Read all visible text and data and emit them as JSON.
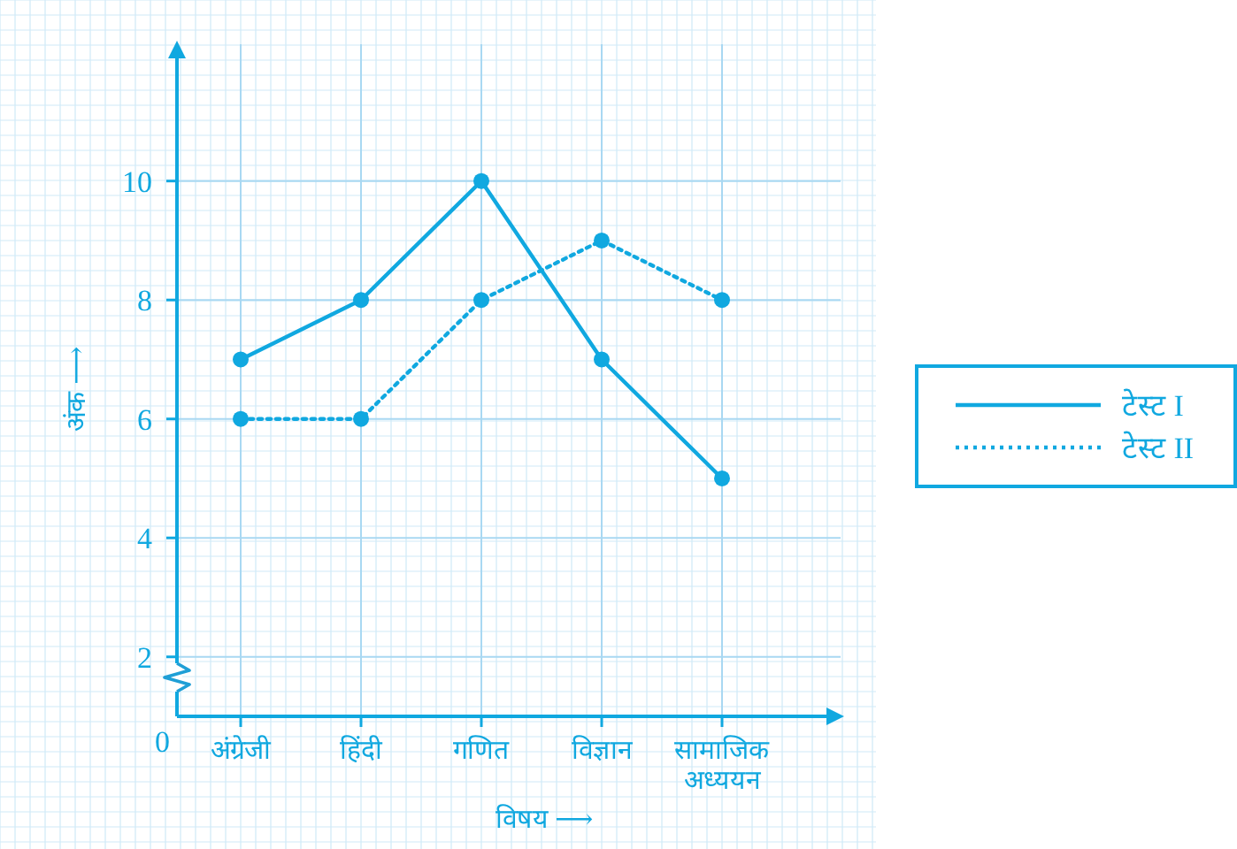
{
  "chart_data": {
    "type": "line",
    "categories": [
      "अंग्रेजी",
      "हिंदी",
      "गणित",
      "विज्ञान",
      "सामाजिक अध्ययन"
    ],
    "series": [
      {
        "name": "टेस्ट I",
        "color": "#10a8e0",
        "line_style": "solid",
        "values": [
          7,
          8,
          10,
          7,
          5
        ]
      },
      {
        "name": "टेस्ट II",
        "color": "#10a8e0",
        "line_style": "dotted",
        "values": [
          6,
          6,
          8,
          9,
          8
        ]
      }
    ],
    "xlabel": "विषय ⟶",
    "ylabel": "अंक ⟶",
    "ylim": [
      1,
      12.3
    ],
    "yticks": [
      2,
      4,
      6,
      8,
      10
    ],
    "annotations": [
      "0"
    ],
    "grid": true,
    "legend": "right",
    "marker": "circle"
  }
}
